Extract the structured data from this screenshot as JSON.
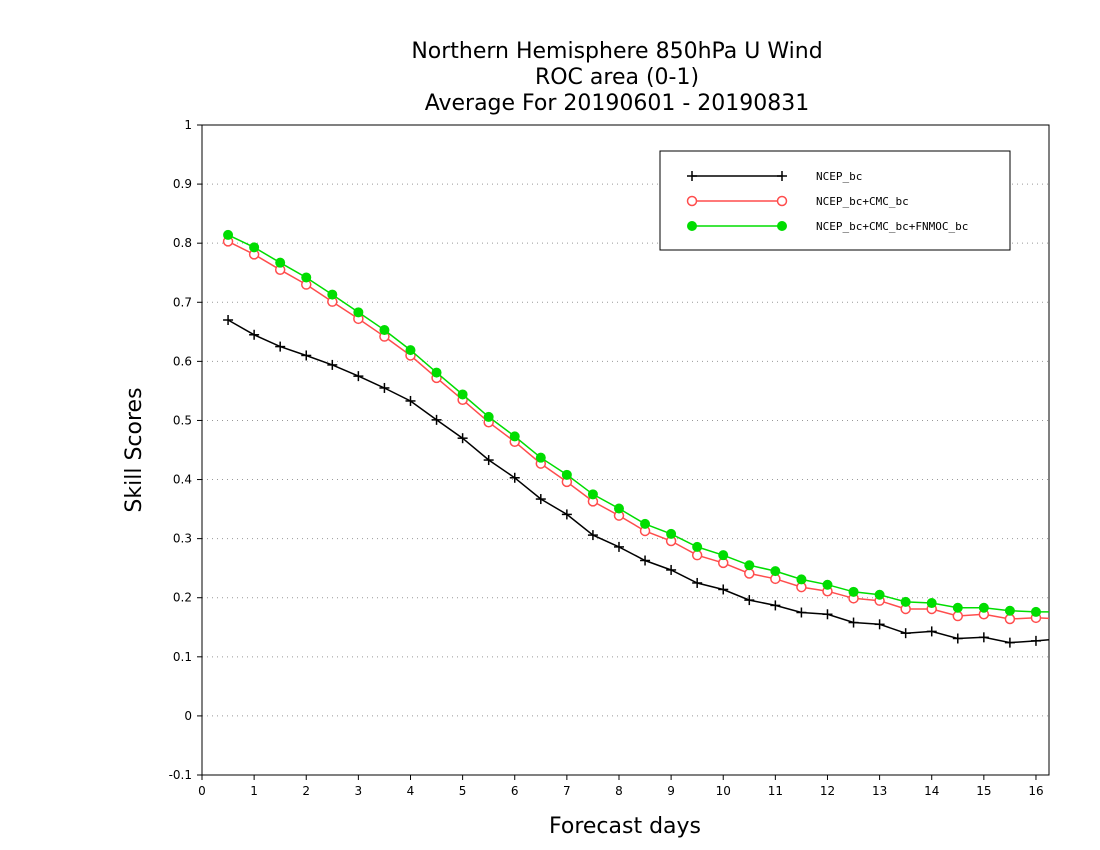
{
  "chart_data": {
    "type": "line",
    "title_lines": [
      "Northern Hemisphere 850hPa U Wind",
      "ROC area (0-1)",
      "Average For 20190601 - 20190831"
    ],
    "xlabel": "Forecast days",
    "ylabel": "Skill Scores",
    "xlim": [
      0,
      16.25
    ],
    "ylim": [
      -0.1,
      1
    ],
    "xticks": [
      0,
      1,
      2,
      3,
      4,
      5,
      6,
      7,
      8,
      9,
      10,
      11,
      12,
      13,
      14,
      15,
      16
    ],
    "xtick_labels": [
      "0",
      "1",
      "2",
      "3",
      "4",
      "5",
      "6",
      "7",
      "8",
      "9",
      "10",
      "11",
      "12",
      "13",
      "14",
      "15",
      "16"
    ],
    "yticks": [
      -0.1,
      0,
      0.1,
      0.2,
      0.3,
      0.4,
      0.5,
      0.6,
      0.7,
      0.8,
      0.9,
      1
    ],
    "ytick_labels": [
      "-0.1",
      "0",
      "0.1",
      "0.2",
      "0.3",
      "0.4",
      "0.5",
      "0.6",
      "0.7",
      "0.8",
      "0.9",
      "1"
    ],
    "grid": true,
    "legend_position": "top-right",
    "x": [
      0.5,
      1,
      1.5,
      2,
      2.5,
      3,
      3.5,
      4,
      4.5,
      5,
      5.5,
      6,
      6.5,
      7,
      7.5,
      8,
      8.5,
      9,
      9.5,
      10,
      10.5,
      11,
      11.5,
      12,
      12.5,
      13,
      13.5,
      14,
      14.5,
      15,
      15.5,
      16,
      16.25
    ],
    "series": [
      {
        "name": "NCEP_bc",
        "color": "#000000",
        "marker": "plus",
        "values": [
          0.67,
          0.645,
          0.625,
          0.61,
          0.594,
          0.575,
          0.555,
          0.533,
          0.501,
          0.47,
          0.433,
          0.403,
          0.367,
          0.341,
          0.306,
          0.286,
          0.263,
          0.247,
          0.225,
          0.214,
          0.196,
          0.187,
          0.175,
          0.172,
          0.158,
          0.155,
          0.14,
          0.143,
          0.131,
          0.133,
          0.124,
          0.127,
          0.129
        ]
      },
      {
        "name": "NCEP_bc+CMC_bc",
        "color": "#ff4d4d",
        "marker": "open-circle",
        "values": [
          0.803,
          0.781,
          0.755,
          0.73,
          0.701,
          0.672,
          0.642,
          0.61,
          0.572,
          0.535,
          0.497,
          0.464,
          0.427,
          0.396,
          0.363,
          0.339,
          0.313,
          0.296,
          0.272,
          0.259,
          0.241,
          0.232,
          0.218,
          0.211,
          0.199,
          0.195,
          0.181,
          0.181,
          0.169,
          0.172,
          0.164,
          0.166,
          0.165
        ]
      },
      {
        "name": "NCEP_bc+CMC_bc+FNMOC_bc",
        "color": "#00dd00",
        "marker": "filled-circle",
        "values": [
          0.814,
          0.793,
          0.767,
          0.742,
          0.713,
          0.683,
          0.653,
          0.619,
          0.581,
          0.544,
          0.506,
          0.473,
          0.437,
          0.408,
          0.375,
          0.351,
          0.325,
          0.308,
          0.286,
          0.272,
          0.255,
          0.245,
          0.231,
          0.222,
          0.21,
          0.205,
          0.193,
          0.191,
          0.183,
          0.183,
          0.178,
          0.176,
          0.176
        ]
      }
    ]
  }
}
